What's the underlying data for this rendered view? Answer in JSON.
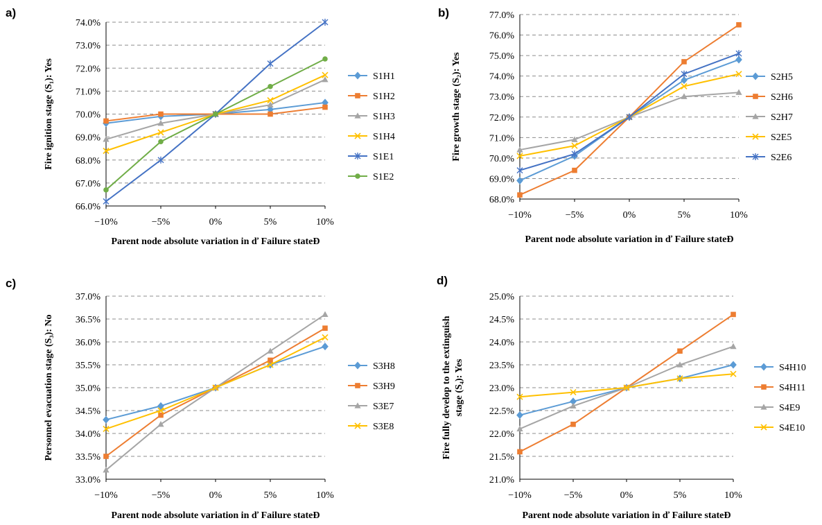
{
  "chart_data": [
    {
      "type": "line",
      "panel": "a)",
      "categories": [
        "−10%",
        "−5%",
        "0%",
        "5%",
        "10%"
      ],
      "xlabel": "Parent node absolute variation in ď Failure stateĐ",
      "ylabel": "Fire ignition stage (S₁): Yes",
      "ylim": [
        66.0,
        74.0
      ],
      "ytick_step": 1.0,
      "grid": true,
      "legend_position": "right",
      "series": [
        {
          "name": "S1H1",
          "color": "#5b9bd5",
          "marker": "diamond",
          "values": [
            69.6,
            69.9,
            70.0,
            70.2,
            70.5
          ]
        },
        {
          "name": "S1H2",
          "color": "#ed7d31",
          "marker": "square",
          "values": [
            69.7,
            70.0,
            70.0,
            70.0,
            70.3
          ]
        },
        {
          "name": "S1H3",
          "color": "#a5a5a5",
          "marker": "triangle",
          "values": [
            68.9,
            69.6,
            70.0,
            70.4,
            71.5
          ]
        },
        {
          "name": "S1H4",
          "color": "#ffc000",
          "marker": "x",
          "values": [
            68.4,
            69.2,
            70.0,
            70.6,
            71.7
          ]
        },
        {
          "name": "S1E1",
          "color": "#4472c4",
          "marker": "star",
          "values": [
            66.2,
            68.0,
            70.0,
            72.2,
            74.0
          ]
        },
        {
          "name": "S1E2",
          "color": "#70ad47",
          "marker": "circle",
          "values": [
            66.7,
            68.8,
            70.0,
            71.2,
            72.4
          ]
        }
      ]
    },
    {
      "type": "line",
      "panel": "b)",
      "categories": [
        "−10%",
        "−5%",
        "0%",
        "5%",
        "10%"
      ],
      "xlabel": "Parent node absolute variation in ď Failure stateĐ",
      "ylabel": "Fire growth stage (S₂): Yes",
      "ylim": [
        68.0,
        77.0
      ],
      "ytick_step": 1.0,
      "grid": true,
      "legend_position": "right",
      "series": [
        {
          "name": "S2H5",
          "color": "#5b9bd5",
          "marker": "diamond",
          "values": [
            68.9,
            70.1,
            72.0,
            73.8,
            74.8
          ]
        },
        {
          "name": "S2H6",
          "color": "#ed7d31",
          "marker": "square",
          "values": [
            68.2,
            69.4,
            72.0,
            74.7,
            76.5
          ]
        },
        {
          "name": "S2H7",
          "color": "#a5a5a5",
          "marker": "triangle",
          "values": [
            70.4,
            70.9,
            72.0,
            73.0,
            73.2
          ]
        },
        {
          "name": "S2E5",
          "color": "#ffc000",
          "marker": "x",
          "values": [
            70.1,
            70.6,
            72.0,
            73.5,
            74.1
          ]
        },
        {
          "name": "S2E6",
          "color": "#4472c4",
          "marker": "star",
          "values": [
            69.4,
            70.2,
            72.0,
            74.1,
            75.1
          ]
        }
      ]
    },
    {
      "type": "line",
      "panel": "c)",
      "categories": [
        "−10%",
        "−5%",
        "0%",
        "5%",
        "10%"
      ],
      "xlabel": "Parent node absolute variation in ď Failure stateĐ",
      "ylabel": "Personnel evacuation stage (S₃): No",
      "ylim": [
        33.0,
        37.0
      ],
      "ytick_step": 0.5,
      "grid": true,
      "legend_position": "right",
      "series": [
        {
          "name": "S3H8",
          "color": "#5b9bd5",
          "marker": "diamond",
          "values": [
            34.3,
            34.6,
            35.0,
            35.5,
            35.9
          ]
        },
        {
          "name": "S3H9",
          "color": "#ed7d31",
          "marker": "square",
          "values": [
            33.5,
            34.4,
            35.0,
            35.6,
            36.3
          ]
        },
        {
          "name": "S3E7",
          "color": "#a5a5a5",
          "marker": "triangle",
          "values": [
            33.2,
            34.2,
            35.0,
            35.8,
            36.6
          ]
        },
        {
          "name": "S3E8",
          "color": "#ffc000",
          "marker": "x",
          "values": [
            34.1,
            34.5,
            35.0,
            35.5,
            36.1
          ]
        }
      ]
    },
    {
      "type": "line",
      "panel": "d)",
      "categories": [
        "−10%",
        "−5%",
        "0%",
        "5%",
        "10%"
      ],
      "xlabel": "Parent node absolute variation in ď Failure stateĐ",
      "ylabel": "Fire fully develop to the extinguish stage (S₄): Yes",
      "ylabel_lines": [
        "Fire fully develop to the extinguish",
        "stage (S₄): Yes"
      ],
      "ylim": [
        21.0,
        25.0
      ],
      "ytick_step": 0.5,
      "grid": true,
      "legend_position": "right",
      "series": [
        {
          "name": "S4H10",
          "color": "#5b9bd5",
          "marker": "diamond",
          "values": [
            22.4,
            22.7,
            23.0,
            23.2,
            23.5
          ]
        },
        {
          "name": "S4H11",
          "color": "#ed7d31",
          "marker": "square",
          "values": [
            21.6,
            22.2,
            23.0,
            23.8,
            24.6
          ]
        },
        {
          "name": "S4E9",
          "color": "#a5a5a5",
          "marker": "triangle",
          "values": [
            22.1,
            22.6,
            23.0,
            23.5,
            23.9
          ]
        },
        {
          "name": "S4E10",
          "color": "#ffc000",
          "marker": "x",
          "values": [
            22.8,
            22.9,
            23.0,
            23.2,
            23.3
          ]
        }
      ]
    }
  ]
}
